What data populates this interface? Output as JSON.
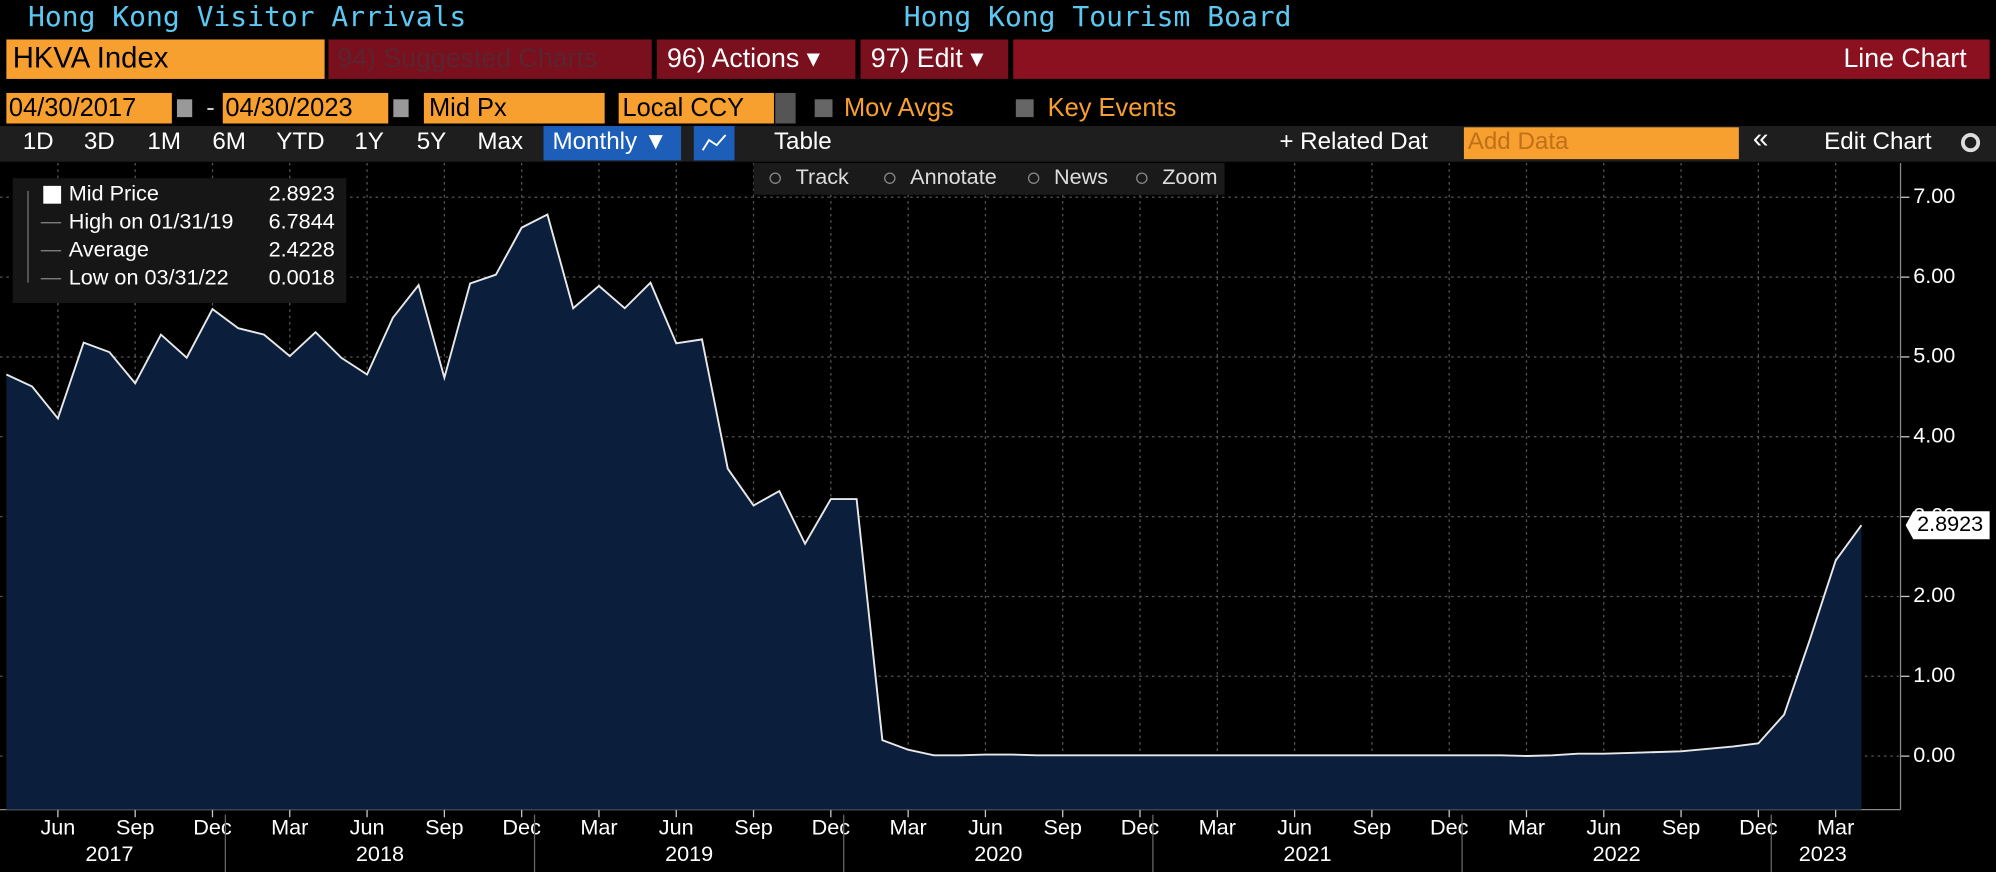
{
  "header": {
    "title_left": "Hong Kong Visitor Arrivals",
    "title_right": "Hong Kong Tourism Board"
  },
  "toolbar": {
    "ticker": "HKVA Index",
    "suggested": "94) Suggested Charts",
    "actions": "96) Actions ▾",
    "edit": "97) Edit ▾",
    "chart_type": "Line Chart"
  },
  "controls": {
    "start_date": "04/30/2017",
    "dash": "-",
    "end_date": "04/30/2023",
    "field": "Mid Px",
    "currency": "Local CCY",
    "mov_avgs": "Mov Avgs",
    "key_events": "Key Events"
  },
  "periods": [
    "1D",
    "3D",
    "1M",
    "6M",
    "YTD",
    "1Y",
    "5Y",
    "Max"
  ],
  "frequency": "Monthly ▼",
  "table": "Table",
  "related": "+ Related Dat",
  "add_data": "Add Data",
  "collapse": "«",
  "edit_chart": "Edit Chart",
  "chart_tools": [
    "Track",
    "Annotate",
    "News",
    "Zoom"
  ],
  "legend": [
    {
      "label": "Mid Price",
      "value": 2.8923
    },
    {
      "label": "High on 01/31/19",
      "value": 6.7844
    },
    {
      "label": "Average",
      "value": 2.4228
    },
    {
      "label": "Low on 03/31/22",
      "value": 0.0018
    }
  ],
  "chart_data": {
    "type": "area",
    "x": [
      "2017-04",
      "2017-05",
      "2017-06",
      "2017-07",
      "2017-08",
      "2017-09",
      "2017-10",
      "2017-11",
      "2017-12",
      "2018-01",
      "2018-02",
      "2018-03",
      "2018-04",
      "2018-05",
      "2018-06",
      "2018-07",
      "2018-08",
      "2018-09",
      "2018-10",
      "2018-11",
      "2018-12",
      "2019-01",
      "2019-02",
      "2019-03",
      "2019-04",
      "2019-05",
      "2019-06",
      "2019-07",
      "2019-08",
      "2019-09",
      "2019-10",
      "2019-11",
      "2019-12",
      "2020-01",
      "2020-02",
      "2020-03",
      "2020-04",
      "2020-05",
      "2020-06",
      "2020-07",
      "2020-08",
      "2020-09",
      "2020-10",
      "2020-11",
      "2020-12",
      "2021-01",
      "2021-02",
      "2021-03",
      "2021-04",
      "2021-05",
      "2021-06",
      "2021-07",
      "2021-08",
      "2021-09",
      "2021-10",
      "2021-11",
      "2021-12",
      "2022-01",
      "2022-02",
      "2022-03",
      "2022-04",
      "2022-05",
      "2022-06",
      "2022-07",
      "2022-08",
      "2022-09",
      "2022-10",
      "2022-11",
      "2022-12",
      "2023-01",
      "2023-02",
      "2023-03",
      "2023-04"
    ],
    "series": [
      {
        "name": "Mid Price",
        "color": "#e8e8e8",
        "fill": "#0b1f3d",
        "values": [
          4.78,
          4.63,
          4.23,
          5.18,
          5.06,
          4.67,
          5.28,
          4.99,
          5.6,
          5.36,
          5.28,
          5.01,
          5.31,
          4.99,
          4.78,
          5.49,
          5.9,
          4.74,
          5.92,
          6.03,
          6.62,
          6.7844,
          5.61,
          5.89,
          5.61,
          5.93,
          5.17,
          5.22,
          3.6,
          3.14,
          3.32,
          2.66,
          3.22,
          3.22,
          0.2,
          0.08,
          0.01,
          0.01,
          0.02,
          0.02,
          0.01,
          0.01,
          0.01,
          0.01,
          0.01,
          0.01,
          0.01,
          0.01,
          0.01,
          0.01,
          0.01,
          0.01,
          0.01,
          0.01,
          0.01,
          0.01,
          0.01,
          0.01,
          0.01,
          0.0018,
          0.01,
          0.03,
          0.03,
          0.04,
          0.05,
          0.06,
          0.09,
          0.12,
          0.16,
          0.52,
          1.46,
          2.45,
          2.8923
        ]
      }
    ],
    "ylim": [
      -0.67,
      7.43
    ],
    "yticks": [
      {
        "value": 0,
        "label": "0.00"
      },
      {
        "value": 1,
        "label": "1.00"
      },
      {
        "value": 2,
        "label": "2.00"
      },
      {
        "value": 3,
        "label": "3.00"
      },
      {
        "value": 4,
        "label": "4.00"
      },
      {
        "value": 5,
        "label": "5.00"
      },
      {
        "value": 6,
        "label": "6.00"
      },
      {
        "value": 7,
        "label": "7.00"
      }
    ],
    "xticks": [
      {
        "value": "2017-06",
        "label": "Jun"
      },
      {
        "value": "2017-09",
        "label": "Sep"
      },
      {
        "value": "2017-12",
        "label": "Dec"
      },
      {
        "value": "2018-03",
        "label": "Mar"
      },
      {
        "value": "2018-06",
        "label": "Jun"
      },
      {
        "value": "2018-09",
        "label": "Sep"
      },
      {
        "value": "2018-12",
        "label": "Dec"
      },
      {
        "value": "2019-03",
        "label": "Mar"
      },
      {
        "value": "2019-06",
        "label": "Jun"
      },
      {
        "value": "2019-09",
        "label": "Sep"
      },
      {
        "value": "2019-12",
        "label": "Dec"
      },
      {
        "value": "2020-03",
        "label": "Mar"
      },
      {
        "value": "2020-06",
        "label": "Jun"
      },
      {
        "value": "2020-09",
        "label": "Sep"
      },
      {
        "value": "2020-12",
        "label": "Dec"
      },
      {
        "value": "2021-03",
        "label": "Mar"
      },
      {
        "value": "2021-06",
        "label": "Jun"
      },
      {
        "value": "2021-09",
        "label": "Sep"
      },
      {
        "value": "2021-12",
        "label": "Dec"
      },
      {
        "value": "2022-03",
        "label": "Mar"
      },
      {
        "value": "2022-06",
        "label": "Jun"
      },
      {
        "value": "2022-09",
        "label": "Sep"
      },
      {
        "value": "2022-12",
        "label": "Dec"
      },
      {
        "value": "2023-03",
        "label": "Mar"
      }
    ],
    "x_year_labels": [
      2017,
      2018,
      2019,
      2020,
      2021,
      2022,
      2023
    ],
    "grid": true
  }
}
